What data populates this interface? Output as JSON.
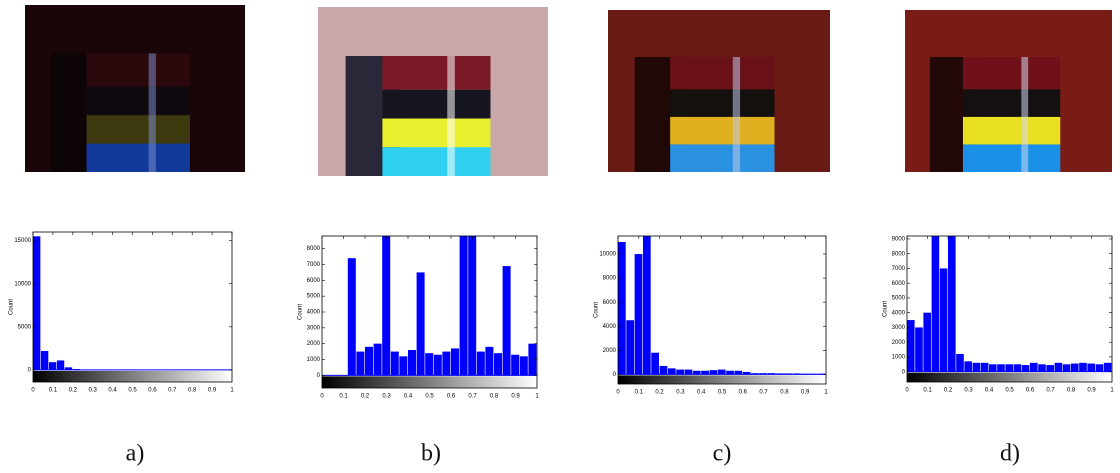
{
  "chart_data": [
    {
      "type": "histogram",
      "caption": "a)",
      "y_label": "Count",
      "color": "#0000ff",
      "bins": [
        0,
        0.04,
        0.08,
        0.12,
        0.16,
        0.2,
        0.24,
        0.28,
        0.32,
        0.36,
        0.4,
        0.44,
        0.48,
        0.52,
        0.56,
        0.6,
        0.64,
        0.68,
        0.72,
        0.76,
        0.8,
        0.84,
        0.88,
        0.92,
        0.96,
        1
      ],
      "values": [
        15500,
        2200,
        900,
        1100,
        300,
        100,
        50,
        0,
        0,
        0,
        0,
        0,
        0,
        0,
        0,
        0,
        0,
        0,
        0,
        0,
        0,
        0,
        0,
        0,
        0
      ],
      "xlim": [
        0,
        1
      ],
      "ylim": [
        -1400,
        16000
      ],
      "xticks": [
        0,
        0.1,
        0.2,
        0.3,
        0.4,
        0.5,
        0.6,
        0.7,
        0.8,
        0.9,
        1
      ],
      "yticks": [
        0,
        5000,
        10000,
        15000
      ]
    },
    {
      "type": "histogram",
      "caption": "b)",
      "y_label": "Count",
      "color": "#0000ff",
      "bins": [
        0,
        0.04,
        0.08,
        0.12,
        0.16,
        0.2,
        0.24,
        0.28,
        0.32,
        0.36,
        0.4,
        0.44,
        0.48,
        0.52,
        0.56,
        0.6,
        0.64,
        0.68,
        0.72,
        0.76,
        0.8,
        0.84,
        0.88,
        0.92,
        0.96,
        1
      ],
      "values": [
        0,
        0,
        0,
        7400,
        1500,
        1800,
        2000,
        8800,
        1500,
        1200,
        1600,
        6500,
        1400,
        1300,
        1500,
        1700,
        8800,
        8800,
        1500,
        1800,
        1400,
        6900,
        1300,
        1200,
        2000
      ],
      "xlim": [
        0,
        1
      ],
      "ylim": [
        -800,
        8800
      ],
      "xticks": [
        0,
        0.1,
        0.2,
        0.3,
        0.4,
        0.5,
        0.6,
        0.7,
        0.8,
        0.9,
        1
      ],
      "yticks": [
        0,
        1000,
        2000,
        3000,
        4000,
        5000,
        6000,
        7000,
        8000
      ]
    },
    {
      "type": "histogram",
      "caption": "c)",
      "y_label": "Count",
      "color": "#0000ff",
      "bins": [
        0,
        0.04,
        0.08,
        0.12,
        0.16,
        0.2,
        0.24,
        0.28,
        0.32,
        0.36,
        0.4,
        0.44,
        0.48,
        0.52,
        0.56,
        0.6,
        0.64,
        0.68,
        0.72,
        0.76,
        0.8,
        0.84,
        0.88,
        0.92,
        0.96,
        1
      ],
      "values": [
        11000,
        4500,
        10000,
        11500,
        1800,
        700,
        500,
        400,
        400,
        300,
        300,
        350,
        400,
        300,
        300,
        200,
        100,
        100,
        100,
        80,
        80,
        80,
        60,
        60,
        60
      ],
      "xlim": [
        0,
        1
      ],
      "ylim": [
        -800,
        11500
      ],
      "xticks": [
        0,
        0.1,
        0.2,
        0.3,
        0.4,
        0.5,
        0.6,
        0.7,
        0.8,
        0.9,
        1
      ],
      "yticks": [
        0,
        2000,
        4000,
        6000,
        8000,
        10000
      ]
    },
    {
      "type": "histogram",
      "caption": "d)",
      "y_label": "Count",
      "color": "#0000ff",
      "bins": [
        0,
        0.04,
        0.08,
        0.12,
        0.16,
        0.2,
        0.24,
        0.28,
        0.32,
        0.36,
        0.4,
        0.44,
        0.48,
        0.52,
        0.56,
        0.6,
        0.64,
        0.68,
        0.72,
        0.76,
        0.8,
        0.84,
        0.88,
        0.92,
        0.96,
        1
      ],
      "values": [
        3500,
        3000,
        4000,
        9200,
        7000,
        9200,
        1200,
        700,
        600,
        600,
        500,
        500,
        500,
        500,
        450,
        600,
        500,
        450,
        600,
        500,
        550,
        600,
        550,
        500,
        600
      ],
      "xlim": [
        0,
        1
      ],
      "ylim": [
        -700,
        9200
      ],
      "xticks": [
        0,
        0.1,
        0.2,
        0.3,
        0.4,
        0.5,
        0.6,
        0.7,
        0.8,
        0.9,
        1
      ],
      "yticks": [
        0,
        1000,
        2000,
        3000,
        4000,
        5000,
        6000,
        7000,
        8000,
        9000
      ]
    }
  ]
}
